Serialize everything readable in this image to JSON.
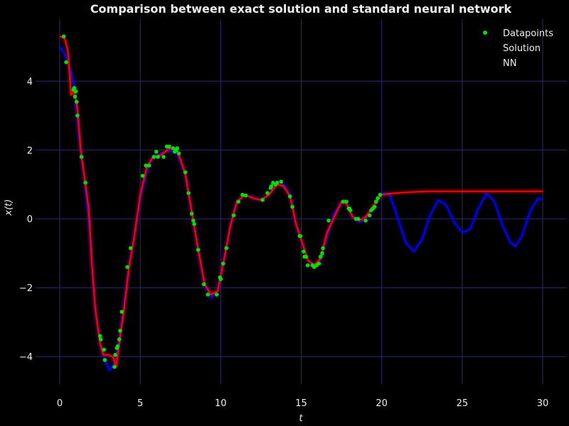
{
  "chart_data": {
    "type": "line",
    "title": "Comparison between exact solution and standard neural network",
    "xlabel": "t",
    "ylabel": "x(t)",
    "xlim": [
      -1.5,
      31.5
    ],
    "ylim": [
      -4.8,
      5.8
    ],
    "x_ticks": [
      0,
      5,
      10,
      15,
      20,
      25,
      30
    ],
    "y_ticks": [
      -4,
      -2,
      0,
      2,
      4
    ],
    "y_tick_labels": [
      "−4",
      "−2",
      "0",
      "2",
      "4"
    ],
    "grid": true,
    "legend_position": "top-right",
    "background": "#000000",
    "series": [
      {
        "name": "Solution",
        "kind": "line",
        "color": "#0000ff",
        "points": [
          [
            0,
            5.0
          ],
          [
            0.3,
            4.8
          ],
          [
            0.6,
            4.4
          ],
          [
            0.9,
            3.9
          ],
          [
            1.2,
            2.4
          ],
          [
            1.5,
            1.3
          ],
          [
            1.8,
            0.0
          ],
          [
            2.0,
            -1.3
          ],
          [
            2.2,
            -2.6
          ],
          [
            2.5,
            -3.6
          ],
          [
            2.8,
            -4.1
          ],
          [
            3.1,
            -4.4
          ],
          [
            3.4,
            -4.2
          ],
          [
            3.7,
            -3.5
          ],
          [
            4.0,
            -2.5
          ],
          [
            4.3,
            -1.4
          ],
          [
            4.6,
            -0.6
          ],
          [
            5.0,
            0.6
          ],
          [
            5.4,
            1.4
          ],
          [
            5.8,
            1.8
          ],
          [
            6.3,
            1.9
          ],
          [
            6.8,
            2.0
          ],
          [
            7.3,
            1.9
          ],
          [
            7.8,
            1.3
          ],
          [
            8.2,
            0.2
          ],
          [
            8.6,
            -0.9
          ],
          [
            9.0,
            -1.9
          ],
          [
            9.4,
            -2.3
          ],
          [
            9.8,
            -2.1
          ],
          [
            10.2,
            -1.2
          ],
          [
            10.6,
            -0.2
          ],
          [
            11.0,
            0.5
          ],
          [
            11.5,
            0.7
          ],
          [
            12.0,
            0.6
          ],
          [
            12.5,
            0.55
          ],
          [
            13.0,
            0.7
          ],
          [
            13.5,
            1.05
          ],
          [
            13.9,
            1.0
          ],
          [
            14.3,
            0.7
          ],
          [
            14.7,
            -0.2
          ],
          [
            15.0,
            -0.6
          ],
          [
            15.4,
            -1.2
          ],
          [
            15.8,
            -1.4
          ],
          [
            16.2,
            -1.2
          ],
          [
            16.6,
            -0.5
          ],
          [
            17.0,
            0.1
          ],
          [
            17.5,
            0.5
          ],
          [
            17.8,
            0.45
          ],
          [
            18.2,
            0.05
          ],
          [
            18.6,
            -0.1
          ],
          [
            19.0,
            0.0
          ],
          [
            19.5,
            0.3
          ],
          [
            20.0,
            0.75
          ],
          [
            20.5,
            0.7
          ],
          [
            21.0,
            0.0
          ],
          [
            21.5,
            -0.7
          ],
          [
            22.0,
            -0.95
          ],
          [
            22.5,
            -0.6
          ],
          [
            23.0,
            0.1
          ],
          [
            23.5,
            0.55
          ],
          [
            24.0,
            0.4
          ],
          [
            24.5,
            -0.1
          ],
          [
            25.0,
            -0.4
          ],
          [
            25.5,
            -0.3
          ],
          [
            26.0,
            0.3
          ],
          [
            26.5,
            0.75
          ],
          [
            27.0,
            0.5
          ],
          [
            27.5,
            -0.2
          ],
          [
            28.0,
            -0.7
          ],
          [
            28.3,
            -0.8
          ],
          [
            28.7,
            -0.5
          ],
          [
            29.2,
            0.2
          ],
          [
            29.7,
            0.6
          ],
          [
            30.0,
            0.55
          ]
        ]
      },
      {
        "name": "NN",
        "kind": "line",
        "color": "#ff0000",
        "points": [
          [
            0,
            5.3
          ],
          [
            0.3,
            5.25
          ],
          [
            0.5,
            4.9
          ],
          [
            0.7,
            3.6
          ],
          [
            0.9,
            3.7
          ],
          [
            1.1,
            3.2
          ],
          [
            1.3,
            2.0
          ],
          [
            1.6,
            1.0
          ],
          [
            1.8,
            0.3
          ],
          [
            2.0,
            -1.3
          ],
          [
            2.2,
            -2.6
          ],
          [
            2.5,
            -3.6
          ],
          [
            2.7,
            -3.95
          ],
          [
            3.0,
            -3.95
          ],
          [
            3.3,
            -4.0
          ],
          [
            3.5,
            -4.3
          ],
          [
            3.7,
            -3.6
          ],
          [
            4.0,
            -2.6
          ],
          [
            4.3,
            -1.4
          ],
          [
            4.6,
            -0.6
          ],
          [
            5.0,
            0.7
          ],
          [
            5.4,
            1.5
          ],
          [
            5.8,
            1.8
          ],
          [
            6.3,
            1.85
          ],
          [
            6.8,
            2.05
          ],
          [
            7.3,
            2.0
          ],
          [
            7.8,
            1.3
          ],
          [
            8.2,
            0.2
          ],
          [
            8.6,
            -0.9
          ],
          [
            9.0,
            -1.9
          ],
          [
            9.4,
            -2.2
          ],
          [
            9.8,
            -2.1
          ],
          [
            10.2,
            -1.2
          ],
          [
            10.6,
            -0.2
          ],
          [
            11.0,
            0.5
          ],
          [
            11.5,
            0.7
          ],
          [
            12.0,
            0.6
          ],
          [
            12.5,
            0.55
          ],
          [
            13.0,
            0.7
          ],
          [
            13.5,
            1.0
          ],
          [
            13.9,
            0.95
          ],
          [
            14.3,
            0.65
          ],
          [
            14.7,
            -0.2
          ],
          [
            15.0,
            -0.6
          ],
          [
            15.4,
            -1.2
          ],
          [
            15.8,
            -1.35
          ],
          [
            16.2,
            -1.15
          ],
          [
            16.6,
            -0.4
          ],
          [
            17.0,
            0.0
          ],
          [
            17.5,
            0.5
          ],
          [
            17.8,
            0.45
          ],
          [
            18.2,
            0.05
          ],
          [
            18.6,
            -0.05
          ],
          [
            19.0,
            0.05
          ],
          [
            19.5,
            0.4
          ],
          [
            20.0,
            0.7
          ],
          [
            20.5,
            0.73
          ],
          [
            21.5,
            0.77
          ],
          [
            23.0,
            0.8
          ],
          [
            25.0,
            0.8
          ],
          [
            27.5,
            0.8
          ],
          [
            30.0,
            0.8
          ]
        ]
      },
      {
        "name": "Datapoints",
        "kind": "scatter",
        "color": "#00dd00",
        "points": [
          [
            0.25,
            5.3
          ],
          [
            0.4,
            4.55
          ],
          [
            0.85,
            3.75
          ],
          [
            0.9,
            3.8
          ],
          [
            0.95,
            3.55
          ],
          [
            1.0,
            3.7
          ],
          [
            1.05,
            3.4
          ],
          [
            1.1,
            3.0
          ],
          [
            1.35,
            1.8
          ],
          [
            1.6,
            1.05
          ],
          [
            2.5,
            -3.4
          ],
          [
            2.55,
            -3.5
          ],
          [
            2.75,
            -3.8
          ],
          [
            2.8,
            -4.1
          ],
          [
            3.4,
            -4.3
          ],
          [
            3.45,
            -3.95
          ],
          [
            3.55,
            -3.75
          ],
          [
            3.6,
            -3.7
          ],
          [
            3.7,
            -3.5
          ],
          [
            3.75,
            -3.25
          ],
          [
            3.85,
            -2.7
          ],
          [
            4.2,
            -1.4
          ],
          [
            4.4,
            -0.85
          ],
          [
            5.15,
            1.25
          ],
          [
            5.35,
            1.55
          ],
          [
            5.55,
            1.55
          ],
          [
            5.85,
            1.8
          ],
          [
            6.0,
            1.95
          ],
          [
            6.1,
            1.8
          ],
          [
            6.45,
            1.8
          ],
          [
            6.65,
            2.1
          ],
          [
            6.8,
            2.1
          ],
          [
            7.05,
            2.05
          ],
          [
            7.15,
            1.95
          ],
          [
            7.25,
            2.0
          ],
          [
            7.3,
            2.05
          ],
          [
            7.4,
            1.9
          ],
          [
            7.8,
            1.35
          ],
          [
            8.0,
            0.75
          ],
          [
            8.2,
            0.15
          ],
          [
            8.3,
            -0.05
          ],
          [
            8.35,
            -0.15
          ],
          [
            8.6,
            -0.9
          ],
          [
            8.95,
            -1.9
          ],
          [
            9.2,
            -2.2
          ],
          [
            9.75,
            -2.2
          ],
          [
            9.95,
            -1.7
          ],
          [
            10.0,
            -1.75
          ],
          [
            10.15,
            -1.3
          ],
          [
            10.35,
            -0.85
          ],
          [
            10.8,
            0.1
          ],
          [
            11.1,
            0.5
          ],
          [
            11.35,
            0.7
          ],
          [
            11.55,
            0.68
          ],
          [
            12.6,
            0.55
          ],
          [
            12.9,
            0.75
          ],
          [
            13.1,
            0.9
          ],
          [
            13.15,
            0.95
          ],
          [
            13.25,
            1.05
          ],
          [
            13.4,
            1.0
          ],
          [
            13.5,
            1.05
          ],
          [
            13.75,
            1.08
          ],
          [
            14.3,
            0.65
          ],
          [
            14.45,
            0.35
          ],
          [
            14.9,
            -0.5
          ],
          [
            14.95,
            -0.5
          ],
          [
            15.15,
            -0.95
          ],
          [
            15.2,
            -1.1
          ],
          [
            15.3,
            -1.1
          ],
          [
            15.4,
            -1.35
          ],
          [
            15.7,
            -1.35
          ],
          [
            15.8,
            -1.4
          ],
          [
            15.95,
            -1.35
          ],
          [
            16.1,
            -1.3
          ],
          [
            16.2,
            -1.1
          ],
          [
            16.3,
            -1.0
          ],
          [
            16.35,
            -0.85
          ],
          [
            16.7,
            -0.05
          ],
          [
            17.6,
            0.5
          ],
          [
            17.8,
            0.5
          ],
          [
            17.95,
            0.3
          ],
          [
            18.0,
            0.3
          ],
          [
            18.05,
            0.25
          ],
          [
            18.4,
            0.0
          ],
          [
            18.55,
            0.0
          ],
          [
            19.0,
            -0.05
          ],
          [
            19.25,
            0.1
          ],
          [
            19.35,
            0.25
          ],
          [
            19.45,
            0.3
          ],
          [
            19.55,
            0.35
          ],
          [
            19.65,
            0.5
          ],
          [
            19.75,
            0.6
          ],
          [
            19.9,
            0.7
          ]
        ]
      }
    ]
  }
}
